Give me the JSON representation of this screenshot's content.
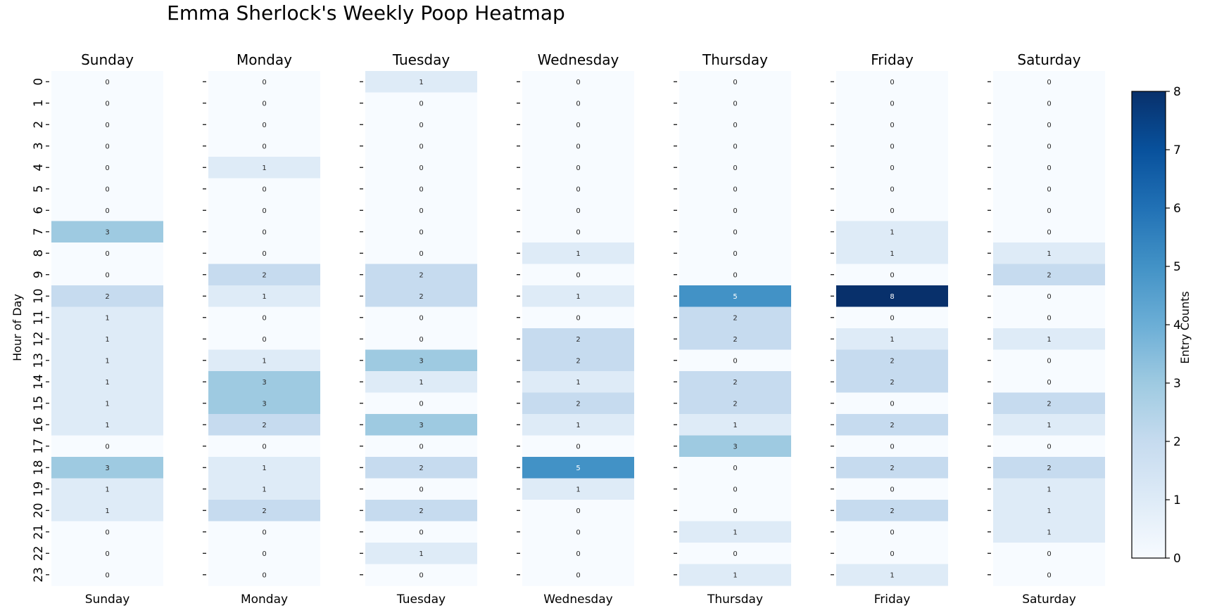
{
  "chart_data": {
    "type": "heatmap",
    "title": "Emma Sherlock's Weekly Poop Heatmap",
    "ylabel": "Hour of Day",
    "days": [
      "Sunday",
      "Monday",
      "Tuesday",
      "Wednesday",
      "Thursday",
      "Friday",
      "Saturday"
    ],
    "hours": [
      "0",
      "1",
      "2",
      "3",
      "4",
      "5",
      "6",
      "7",
      "8",
      "9",
      "10",
      "11",
      "12",
      "13",
      "14",
      "15",
      "16",
      "17",
      "18",
      "19",
      "20",
      "21",
      "22",
      "23"
    ],
    "values": [
      [
        0,
        0,
        0,
        0,
        0,
        0,
        0,
        3,
        0,
        0,
        2,
        1,
        1,
        1,
        1,
        1,
        1,
        0,
        3,
        1,
        1,
        0,
        0,
        0
      ],
      [
        0,
        0,
        0,
        0,
        1,
        0,
        0,
        0,
        0,
        2,
        1,
        0,
        0,
        1,
        3,
        3,
        2,
        0,
        1,
        1,
        2,
        0,
        0,
        0
      ],
      [
        1,
        0,
        0,
        0,
        0,
        0,
        0,
        0,
        0,
        2,
        2,
        0,
        0,
        3,
        1,
        0,
        3,
        0,
        2,
        0,
        2,
        0,
        1,
        0
      ],
      [
        0,
        0,
        0,
        0,
        0,
        0,
        0,
        0,
        1,
        0,
        1,
        0,
        2,
        2,
        1,
        2,
        1,
        0,
        5,
        1,
        0,
        0,
        0,
        0
      ],
      [
        0,
        0,
        0,
        0,
        0,
        0,
        0,
        0,
        0,
        0,
        5,
        2,
        2,
        0,
        2,
        2,
        1,
        3,
        0,
        0,
        0,
        1,
        0,
        1
      ],
      [
        0,
        0,
        0,
        0,
        0,
        0,
        0,
        1,
        1,
        0,
        8,
        0,
        1,
        2,
        2,
        0,
        2,
        0,
        2,
        0,
        2,
        0,
        0,
        1
      ],
      [
        0,
        0,
        0,
        0,
        0,
        0,
        0,
        0,
        1,
        2,
        0,
        0,
        1,
        0,
        0,
        2,
        1,
        0,
        2,
        1,
        1,
        1,
        0,
        0
      ]
    ],
    "colorbar": {
      "label": "Entry Counts",
      "vmin": 0,
      "vmax": 8,
      "ticks": [
        "0",
        "1",
        "2",
        "3",
        "4",
        "5",
        "6",
        "7",
        "8"
      ],
      "colormap": "Blues"
    },
    "colors": {
      "c0": "#f7fbff",
      "c1": "#deebf7",
      "c2": "#c6dbef",
      "c3": "#9ecae1",
      "c5": "#4292c6",
      "c8": "#08306b"
    }
  }
}
